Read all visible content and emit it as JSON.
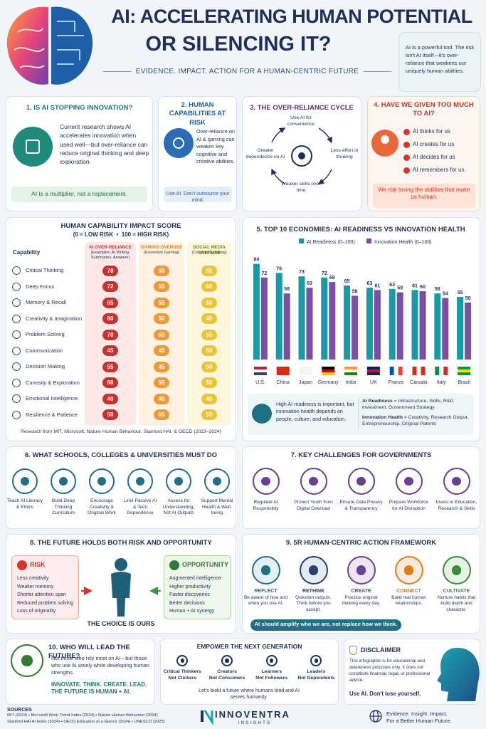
{
  "header": {
    "title_line1": "AI: ACCELERATING HUMAN POTENTIAL",
    "title_line2": "OR SILENCING IT?",
    "subtitle": "EVIDENCE. IMPACT. ACTION FOR A HUMAN-CENTRIC FUTURE",
    "quote": "AI is a powerful tool. The risk isn't AI itself—it's over-reliance that weakens our uniquely human abilities."
  },
  "s1": {
    "title": "1. IS AI STOPPING INNOVATION?",
    "body": "Current research shows AI accelerates innovation when used well—but over-reliance can reduce original thinking and deep exploration.",
    "note": "AI is a multiplier, not a replacement."
  },
  "s2": {
    "title": "2. HUMAN CAPABILITIES AT RISK",
    "body": "Over-reliance on AI & gaming can weaken key cognitive and creative abilities.",
    "note": "Use AI. Don't outsource your mind."
  },
  "s3": {
    "title": "3. THE OVER-RELIANCE CYCLE",
    "steps": [
      "Use AI for convenience",
      "Less effort in thinking",
      "Weaker skills over time",
      "Greater dependence on AI"
    ]
  },
  "s4": {
    "title": "4. HAVE WE GIVEN TOO MUCH TO AI?",
    "items": [
      "AI thinks for us",
      "AI creates for us",
      "AI decides for us",
      "AI remembers for us"
    ],
    "note": "We risk losing the abilities that make us human."
  },
  "impact": {
    "title": "HUMAN CAPABILITY IMPACT SCORE",
    "scale": "(0 = LOW RISK  •  100 = HIGH RISK)",
    "row_header": "Capability",
    "columns": [
      {
        "name": "AI OVER-RELIANCE",
        "sub": "(Examples: AI Writing, Summaries, Answers)"
      },
      {
        "name": "GAMING OVERUSE",
        "sub": "(Excessive Gaming)"
      },
      {
        "name": "SOCIAL MEDIA OVERUSE",
        "sub": "(Constant Scrolling)"
      }
    ],
    "rows": [
      {
        "capability": "Critical Thinking",
        "scores": [
          78,
          60,
          55
        ]
      },
      {
        "capability": "Deep Focus",
        "scores": [
          72,
          65,
          60
        ]
      },
      {
        "capability": "Memory & Recall",
        "scores": [
          65,
          55,
          50
        ]
      },
      {
        "capability": "Creativity & Imagination",
        "scores": [
          80,
          50,
          45
        ]
      },
      {
        "capability": "Problem Solving",
        "scores": [
          70,
          60,
          55
        ]
      },
      {
        "capability": "Communication",
        "scores": [
          45,
          40,
          50
        ]
      },
      {
        "capability": "Decision Making",
        "scores": [
          55,
          45,
          50
        ]
      },
      {
        "capability": "Curiosity & Exploration",
        "scores": [
          60,
          55,
          50
        ]
      },
      {
        "capability": "Emotional Intelligence",
        "scores": [
          40,
          40,
          45
        ]
      },
      {
        "capability": "Resilience & Patience",
        "scores": [
          50,
          65,
          55
        ]
      }
    ],
    "source": "Research from MIT, Microsoft, Nature Human Behaviour, Stanford HAI, & OECD (2023–2024)"
  },
  "chart_data": {
    "type": "bar",
    "title": "5. TOP 10 ECONOMIES: AI READINESS VS INNOVATION HEALTH",
    "categories": [
      "U.S.",
      "China",
      "Japan",
      "Germany",
      "India",
      "UK",
      "France",
      "Canada",
      "Italy",
      "Brazil"
    ],
    "series": [
      {
        "name": "AI Readiness (0–100)",
        "color": "#1a9aa6",
        "values": [
          84,
          76,
          73,
          72,
          65,
          63,
          62,
          61,
          58,
          55
        ]
      },
      {
        "name": "Innovation Health (0–100)",
        "color": "#7b4fa6",
        "values": [
          72,
          58,
          63,
          68,
          56,
          61,
          59,
          60,
          54,
          50
        ]
      }
    ],
    "ylim": [
      0,
      100
    ],
    "annotation": "High AI readiness is important, but innovation health depends on people, culture, and education.",
    "definitions": [
      {
        "term": "AI Readiness",
        "definition": " = Infrastructure, Skills, R&D Investment, Government Strategy"
      },
      {
        "term": "Innovation Health",
        "definition": " = Creativity, Research Output, Entrepreneurship, Original Patents"
      }
    ]
  },
  "s6": {
    "title": "6. WHAT SCHOOLS, COLLEGES & UNIVERSITIES MUST DO",
    "items": [
      "Teach AI Literacy & Ethics",
      "Build Deep Thinking Curriculum",
      "Encourage Creativity & Original Work",
      "Limit Passive AI & Tech Dependence",
      "Assess for Understanding, Not AI Outputs",
      "Support Mental Health & Well-being"
    ]
  },
  "s7": {
    "title": "7. KEY CHALLENGES FOR GOVERNMENTS",
    "items": [
      "Regulate AI Responsibly",
      "Protect Youth from Digital Overload",
      "Ensure Data Privacy & Transparency",
      "Prepare Workforce for AI Disruption",
      "Invest in Education, Research & Skills"
    ]
  },
  "s8": {
    "title": "8. THE FUTURE HOLDS BOTH RISK AND OPPORTUNITY",
    "risk": {
      "title": "RISK",
      "items": [
        "Less creativity",
        "Weaker memory",
        "Shorter attention span",
        "Reduced problem solving",
        "Loss of originality"
      ]
    },
    "opportunity": {
      "title": "OPPORTUNITY",
      "items": [
        "Augmented intelligence",
        "Higher productivity",
        "Faster discoveries",
        "Better decisions",
        "Human + AI synergy"
      ]
    },
    "tagline": "THE CHOICE IS OURS"
  },
  "s9": {
    "title": "9. 5R HUMAN-CENTRIC ACTION FRAMEWORK",
    "steps": [
      {
        "name": "REFLECT",
        "text": "Be aware of how and when you use AI."
      },
      {
        "name": "RETHINK",
        "text": "Question outputs. Think before you accept."
      },
      {
        "name": "CREATE",
        "text": "Practice original thinking every day."
      },
      {
        "name": "CONNECT",
        "text": "Build real human relationships."
      },
      {
        "name": "CULTIVATE",
        "text": "Nurture habits that build depth and character."
      }
    ],
    "banner": "AI should amplify who we are, not replace how we think."
  },
  "s10": {
    "title": "10. WHO WILL LEAD THE FUTURE?",
    "body": "Not those who rely most on AI—but those who use AI wisely while developing human strengths.",
    "motto": "INNOVATE. THINK. CREATE. LEAD. THE FUTURE IS HUMAN + AI."
  },
  "empower": {
    "title": "EMPOWER THE NEXT GENERATION",
    "items": [
      {
        "name": "Critical Thinkers",
        "contrast": "Not Clickers"
      },
      {
        "name": "Creators",
        "contrast": "Not Consumers"
      },
      {
        "name": "Learners",
        "contrast": "Not Followers"
      },
      {
        "name": "Leaders",
        "contrast": "Not Dependents"
      }
    ],
    "footer": "Let's build a future where humans lead and AI serves humanity."
  },
  "disclaimer": {
    "title": "DISCLAIMER",
    "body": "This infographic is for educational and awareness purposes only. It does not constitute financial, legal, or professional advice.",
    "note": "Use AI. Don't lose yourself."
  },
  "footer": {
    "sources_title": "SOURCES",
    "sources": [
      "MIT (2023) • Microsoft Work Trend Index (2024) • Nature Human Behaviour (2024)",
      "Stanford HAI AI Index (2024) • OECD Education at a Glance (2024) • UNESCO (2023)"
    ],
    "brand": "INNOVENTRA",
    "brand_sub": "INSIGHTS",
    "tagline": [
      "Evidence. Insight. Impact.",
      "For a Better Human Future."
    ]
  }
}
